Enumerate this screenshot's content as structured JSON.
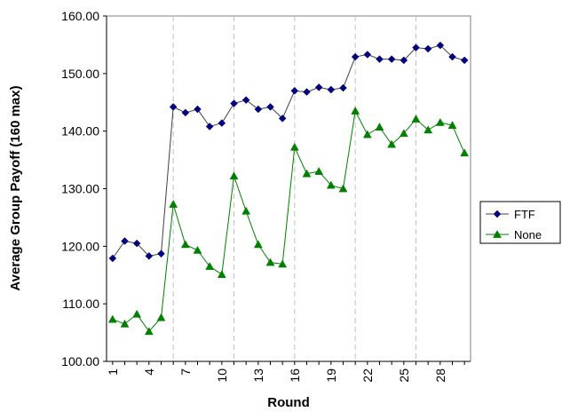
{
  "chart_data": {
    "type": "line",
    "xlabel": "Round",
    "ylabel": "Average Group Payoff (160 max)",
    "ylim": [
      100,
      160
    ],
    "yticks": [
      "100.00",
      "110.00",
      "120.00",
      "130.00",
      "140.00",
      "150.00",
      "160.00"
    ],
    "x": [
      1,
      2,
      3,
      4,
      5,
      6,
      7,
      8,
      9,
      10,
      11,
      12,
      13,
      14,
      15,
      16,
      17,
      18,
      19,
      20,
      21,
      22,
      23,
      24,
      25,
      26,
      27,
      28,
      29,
      30
    ],
    "xtick_labels": [
      "1",
      "4",
      "7",
      "10",
      "13",
      "16",
      "19",
      "22",
      "25",
      "28"
    ],
    "xtick_rounds": [
      1,
      4,
      7,
      10,
      13,
      16,
      19,
      22,
      25,
      28
    ],
    "session_breaks": [
      5.5,
      10.5,
      15.5,
      20.5,
      25.5
    ],
    "grid": false,
    "legend_position": "right",
    "series": [
      {
        "name": "FTF",
        "color": "#000080",
        "line_color": "#404040",
        "marker": "diamond",
        "values": [
          117.9,
          120.9,
          120.5,
          118.3,
          118.7,
          144.2,
          143.2,
          143.8,
          140.8,
          141.4,
          144.8,
          145.4,
          143.8,
          144.2,
          142.2,
          147.0,
          146.8,
          147.6,
          147.2,
          147.5,
          152.9,
          153.3,
          152.5,
          152.5,
          152.3,
          154.5,
          154.3,
          154.9,
          152.9,
          152.3
        ]
      },
      {
        "name": "None",
        "color": "#008000",
        "line_color": "#008000",
        "marker": "triangle",
        "values": [
          107.3,
          106.5,
          108.2,
          105.2,
          107.6,
          127.3,
          120.3,
          119.3,
          116.5,
          115.1,
          132.2,
          126.1,
          120.3,
          117.2,
          116.9,
          137.2,
          132.6,
          133.0,
          130.6,
          130.0,
          143.5,
          139.4,
          140.7,
          137.7,
          139.6,
          142.1,
          140.2,
          141.5,
          141.0,
          136.2
        ]
      }
    ]
  }
}
